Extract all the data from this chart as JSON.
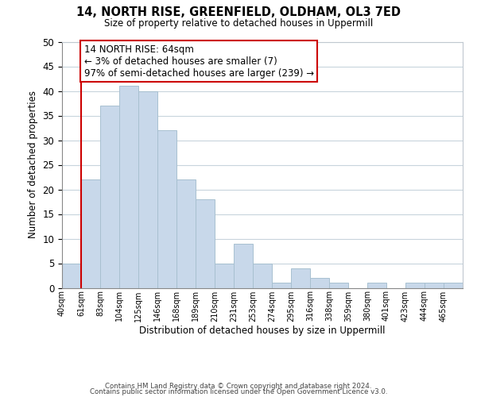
{
  "title": "14, NORTH RISE, GREENFIELD, OLDHAM, OL3 7ED",
  "subtitle": "Size of property relative to detached houses in Uppermill",
  "xlabel": "Distribution of detached houses by size in Uppermill",
  "ylabel": "Number of detached properties",
  "bar_color": "#c8d8ea",
  "bar_edge_color": "#a8c0d0",
  "bin_labels": [
    "40sqm",
    "61sqm",
    "83sqm",
    "104sqm",
    "125sqm",
    "146sqm",
    "168sqm",
    "189sqm",
    "210sqm",
    "231sqm",
    "253sqm",
    "274sqm",
    "295sqm",
    "316sqm",
    "338sqm",
    "359sqm",
    "380sqm",
    "401sqm",
    "423sqm",
    "444sqm",
    "465sqm"
  ],
  "bar_heights": [
    5,
    22,
    37,
    41,
    40,
    32,
    22,
    18,
    5,
    9,
    5,
    1,
    4,
    2,
    1,
    0,
    1,
    0,
    1,
    1,
    1
  ],
  "ylim": [
    0,
    50
  ],
  "yticks": [
    0,
    5,
    10,
    15,
    20,
    25,
    30,
    35,
    40,
    45,
    50
  ],
  "property_line_x": 1,
  "annotation_title": "14 NORTH RISE: 64sqm",
  "annotation_line1": "← 3% of detached houses are smaller (7)",
  "annotation_line2": "97% of semi-detached houses are larger (239) →",
  "annotation_box_color": "#ffffff",
  "annotation_box_edge_color": "#cc0000",
  "property_line_color": "#cc0000",
  "footer1": "Contains HM Land Registry data © Crown copyright and database right 2024.",
  "footer2": "Contains public sector information licensed under the Open Government Licence v3.0."
}
